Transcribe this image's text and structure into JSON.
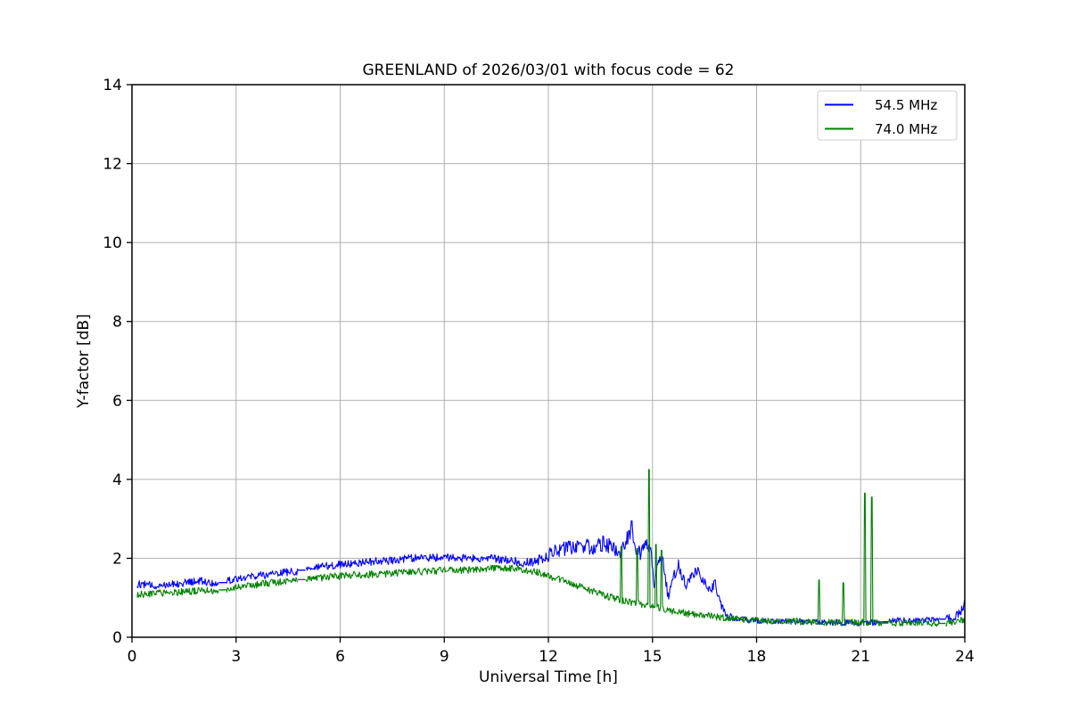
{
  "chart_data": {
    "type": "line",
    "title": "GREENLAND of 2026/03/01 with focus code = 62",
    "xlabel": "Universal Time [h]",
    "ylabel": "Y-factor [dB]",
    "xlim": [
      0,
      24
    ],
    "ylim": [
      0,
      14
    ],
    "x_ticks": [
      0,
      3,
      6,
      9,
      12,
      15,
      18,
      21,
      24
    ],
    "x_tick_labels": [
      "0",
      "3",
      "6",
      "9",
      "12",
      "15",
      "18",
      "21",
      "24"
    ],
    "y_ticks": [
      0,
      2,
      4,
      6,
      8,
      10,
      12,
      14
    ],
    "y_tick_labels": [
      "0",
      "2",
      "4",
      "6",
      "8",
      "10",
      "12",
      "14"
    ],
    "grid": true,
    "grid_color": "#b0b0b0",
    "background": "#ffffff",
    "legend_position": "upper right",
    "noise_seed": 12,
    "sample_step_hours": 0.02,
    "sample_start": 0.15,
    "sample_end": 23.98,
    "gaps": [
      [
        2.5,
        2.72
      ],
      [
        4.78,
        5.0
      ],
      [
        21.62,
        21.8
      ],
      [
        23.28,
        23.45
      ]
    ],
    "series": [
      {
        "name": "54.5 MHz",
        "color": "#0000ff",
        "mean": [
          [
            0,
            1.32
          ],
          [
            0.3,
            1.35
          ],
          [
            0.6,
            1.3
          ],
          [
            1,
            1.35
          ],
          [
            1.5,
            1.38
          ],
          [
            2,
            1.42
          ],
          [
            2.5,
            1.35
          ],
          [
            2.72,
            1.42
          ],
          [
            3,
            1.5
          ],
          [
            3.5,
            1.55
          ],
          [
            4,
            1.6
          ],
          [
            4.78,
            1.68
          ],
          [
            5,
            1.72
          ],
          [
            5.5,
            1.78
          ],
          [
            6,
            1.85
          ],
          [
            6.5,
            1.88
          ],
          [
            7,
            1.92
          ],
          [
            7.5,
            1.95
          ],
          [
            8,
            2.0
          ],
          [
            8.5,
            2.02
          ],
          [
            9,
            2.02
          ],
          [
            9.5,
            2.0
          ],
          [
            10,
            2.0
          ],
          [
            10.5,
            1.98
          ],
          [
            11,
            1.95
          ],
          [
            11.3,
            1.88
          ],
          [
            11.6,
            1.92
          ],
          [
            12,
            2.08
          ],
          [
            12.3,
            2.22
          ],
          [
            12.6,
            2.28
          ],
          [
            13,
            2.32
          ],
          [
            13.3,
            2.28
          ],
          [
            13.6,
            2.38
          ],
          [
            13.9,
            2.25
          ],
          [
            14.1,
            2.15
          ],
          [
            14.25,
            2.45
          ],
          [
            14.4,
            2.75
          ],
          [
            14.5,
            2.3
          ],
          [
            14.65,
            2.1
          ],
          [
            14.8,
            2.4
          ],
          [
            14.95,
            2.25
          ],
          [
            15.05,
            1.2
          ],
          [
            15.15,
            1.85
          ],
          [
            15.3,
            2.0
          ],
          [
            15.45,
            1.0
          ],
          [
            15.6,
            1.5
          ],
          [
            15.75,
            1.85
          ],
          [
            15.95,
            1.3
          ],
          [
            16.1,
            1.5
          ],
          [
            16.3,
            1.68
          ],
          [
            16.5,
            1.4
          ],
          [
            16.65,
            1.15
          ],
          [
            16.8,
            1.38
          ],
          [
            17,
            0.75
          ],
          [
            17.2,
            0.52
          ],
          [
            17.5,
            0.46
          ],
          [
            18,
            0.42
          ],
          [
            19,
            0.4
          ],
          [
            20,
            0.38
          ],
          [
            21,
            0.36
          ],
          [
            21.6,
            0.38
          ],
          [
            21.8,
            0.4
          ],
          [
            22,
            0.42
          ],
          [
            23,
            0.45
          ],
          [
            23.45,
            0.46
          ],
          [
            23.7,
            0.52
          ],
          [
            23.9,
            0.65
          ],
          [
            24,
            0.95
          ]
        ],
        "noise_amp": [
          [
            0,
            0.1
          ],
          [
            10,
            0.1
          ],
          [
            11.5,
            0.12
          ],
          [
            12,
            0.18
          ],
          [
            13,
            0.2
          ],
          [
            14,
            0.2
          ],
          [
            15,
            0.14
          ],
          [
            16.5,
            0.14
          ],
          [
            17,
            0.1
          ],
          [
            18,
            0.07
          ],
          [
            23,
            0.08
          ],
          [
            23.7,
            0.1
          ],
          [
            24,
            0.12
          ]
        ],
        "spikes": [
          [
            14.4,
            2.95
          ]
        ]
      },
      {
        "name": "74.0 MHz",
        "color": "#008000",
        "mean": [
          [
            0,
            1.08
          ],
          [
            0.5,
            1.1
          ],
          [
            1,
            1.12
          ],
          [
            1.5,
            1.15
          ],
          [
            2,
            1.18
          ],
          [
            2.5,
            1.18
          ],
          [
            2.72,
            1.22
          ],
          [
            3,
            1.27
          ],
          [
            3.5,
            1.32
          ],
          [
            4,
            1.38
          ],
          [
            4.78,
            1.45
          ],
          [
            5,
            1.47
          ],
          [
            5.5,
            1.51
          ],
          [
            6,
            1.55
          ],
          [
            6.5,
            1.58
          ],
          [
            7,
            1.6
          ],
          [
            7.5,
            1.62
          ],
          [
            8,
            1.65
          ],
          [
            8.5,
            1.67
          ],
          [
            9,
            1.7
          ],
          [
            9.5,
            1.7
          ],
          [
            10,
            1.72
          ],
          [
            10.5,
            1.74
          ],
          [
            11,
            1.75
          ],
          [
            11.3,
            1.72
          ],
          [
            11.6,
            1.66
          ],
          [
            12,
            1.56
          ],
          [
            12.3,
            1.46
          ],
          [
            12.6,
            1.38
          ],
          [
            13,
            1.26
          ],
          [
            13.3,
            1.16
          ],
          [
            13.6,
            1.06
          ],
          [
            14,
            0.96
          ],
          [
            14.5,
            0.86
          ],
          [
            15,
            0.78
          ],
          [
            15.5,
            0.68
          ],
          [
            16,
            0.6
          ],
          [
            16.5,
            0.55
          ],
          [
            17,
            0.5
          ],
          [
            17.5,
            0.46
          ],
          [
            18,
            0.42
          ],
          [
            19,
            0.4
          ],
          [
            20,
            0.38
          ],
          [
            21,
            0.38
          ],
          [
            21.6,
            0.36
          ],
          [
            22,
            0.36
          ],
          [
            23,
            0.35
          ],
          [
            23.45,
            0.35
          ],
          [
            23.7,
            0.38
          ],
          [
            24,
            0.45
          ]
        ],
        "noise_amp": [
          [
            0,
            0.09
          ],
          [
            12,
            0.09
          ],
          [
            24,
            0.08
          ]
        ],
        "spikes": [
          [
            14.1,
            2.3
          ],
          [
            14.56,
            2.25
          ],
          [
            14.9,
            4.25
          ],
          [
            15.1,
            2.35
          ],
          [
            15.26,
            2.2
          ],
          [
            19.8,
            1.45
          ],
          [
            20.5,
            1.38
          ],
          [
            21.12,
            3.65
          ],
          [
            21.32,
            3.55
          ]
        ]
      }
    ]
  }
}
